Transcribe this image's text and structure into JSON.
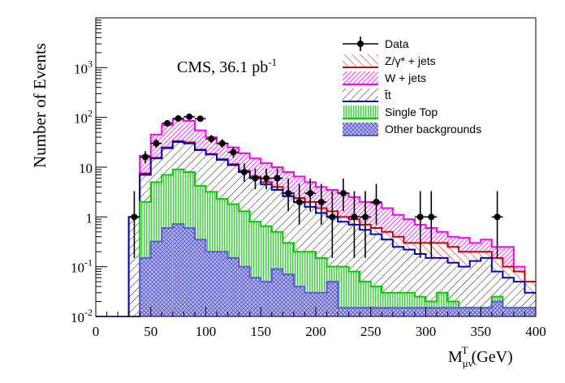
{
  "chart_data": {
    "type": "bar",
    "stacked": true,
    "y_scale": "log",
    "xlim": [
      0,
      400
    ],
    "ylim": [
      0.01,
      10000
    ],
    "bin_width": 10,
    "x_ticks": [
      "0",
      "50",
      "100",
      "150",
      "200",
      "250",
      "300",
      "350",
      "400"
    ],
    "y_ticks": [
      {
        "value": 0.01,
        "base": "10",
        "exp": "-2"
      },
      {
        "value": 0.1,
        "base": "10",
        "exp": "-1"
      },
      {
        "value": 1,
        "base": "1",
        "exp": ""
      },
      {
        "value": 10,
        "base": "10",
        "exp": ""
      },
      {
        "value": 100,
        "base": "10",
        "exp": "2"
      },
      {
        "value": 1000,
        "base": "10",
        "exp": "3"
      }
    ],
    "ylabel": "Number of Events",
    "xlabel": {
      "main": "M",
      "sub": "μν",
      "sup": "T",
      "unit": "(GeV)"
    },
    "annotation": {
      "text": "CMS, 36.1 pb",
      "sup": "-1"
    },
    "legend_position": "top-right",
    "stack_order": [
      "Other backgrounds",
      "Single Top",
      "t̄t",
      "Z/γ* + jets",
      "W + jets"
    ],
    "stack_tops": [
      {
        "name": "Other backgrounds",
        "color": "#5a5ad8",
        "hatch": "cross",
        "values": [
          0.01,
          0.01,
          0.01,
          0.01,
          0.15,
          0.32,
          0.6,
          0.72,
          0.6,
          0.35,
          0.2,
          0.2,
          0.15,
          0.1,
          0.06,
          0.05,
          0.09,
          0.07,
          0.04,
          0.03,
          0.03,
          0.05,
          0.015,
          0.015,
          0.015,
          0.015,
          0.015,
          0.015,
          0.015,
          0.015,
          0.015,
          0.015,
          0.015,
          0.015,
          0.015,
          0.015,
          0.02,
          0.015,
          0.015,
          0.015
        ]
      },
      {
        "name": "Single Top",
        "color": "#00cc00",
        "hatch": "vertical",
        "values": [
          0.01,
          0.01,
          0.01,
          0.01,
          2,
          5,
          7,
          9,
          8,
          4.2,
          3.2,
          2.3,
          1.8,
          1.3,
          0.8,
          0.65,
          0.5,
          0.3,
          0.2,
          0.2,
          0.15,
          0.1,
          0.1,
          0.08,
          0.05,
          0.04,
          0.03,
          0.03,
          0.03,
          0.025,
          0.02,
          0.03,
          0.02,
          0.015,
          0.015,
          0.015,
          0.025,
          0.015,
          0.015,
          0.015
        ]
      },
      {
        "name": "t̄t",
        "color": "#0000cc",
        "hatch": "diagonal-back",
        "values": [
          0.01,
          0.01,
          0.01,
          1,
          7,
          15,
          24,
          32,
          30,
          22,
          18,
          14,
          11,
          8,
          6,
          4.5,
          3.5,
          2.6,
          2,
          1.6,
          1.2,
          1,
          0.8,
          0.7,
          0.55,
          0.45,
          0.35,
          0.25,
          0.22,
          0.18,
          0.15,
          0.15,
          0.12,
          0.1,
          0.13,
          0.15,
          0.08,
          0.06,
          0.05,
          0.03
        ]
      },
      {
        "name": "Z/γ* + jets",
        "color": "#cc0000",
        "hatch": "diagonal",
        "values": [
          0.01,
          0.01,
          0.01,
          0.25,
          7.5,
          15.5,
          25,
          33.5,
          31.5,
          22.5,
          18.5,
          14.5,
          11.5,
          8.5,
          6.5,
          5,
          4,
          3,
          2.4,
          2,
          1.5,
          1.3,
          1,
          0.9,
          0.7,
          0.6,
          0.5,
          0.4,
          0.3,
          0.3,
          0.3,
          0.3,
          0.25,
          0.2,
          0.2,
          0.2,
          0.15,
          0.1,
          0.08,
          0.05
        ]
      },
      {
        "name": "W + jets",
        "color": "#ff00ff",
        "hatch": "diagonal-fine",
        "values": [
          0.01,
          0.01,
          0.01,
          0.9,
          17,
          45,
          70,
          92,
          85,
          55,
          40,
          30,
          25,
          19,
          15,
          12,
          10,
          8,
          6.5,
          5,
          4,
          3.5,
          3,
          2.5,
          2,
          1.9,
          1.5,
          1.1,
          0.9,
          0.7,
          0.6,
          0.5,
          0.4,
          0.38,
          0.3,
          0.35,
          0.25,
          0.25,
          0.1,
          0.04
        ]
      }
    ],
    "data_points": {
      "name": "Data",
      "x": [
        35,
        45,
        55,
        65,
        75,
        85,
        95,
        105,
        115,
        125,
        135,
        145,
        155,
        165,
        175,
        185,
        195,
        205,
        215,
        225,
        235,
        245,
        255,
        295,
        305,
        365
      ],
      "y": [
        1,
        16,
        30,
        76,
        95,
        103,
        94,
        37,
        30,
        20,
        8,
        6,
        6,
        6,
        3,
        2,
        3,
        2,
        1,
        3,
        1,
        1,
        2,
        1,
        1,
        1
      ],
      "err_lo": [
        0.85,
        4,
        5.5,
        8.7,
        9.7,
        10,
        9.7,
        6,
        5.5,
        4.5,
        2.9,
        2.4,
        2.4,
        2.4,
        1.7,
        1.3,
        1.7,
        1.3,
        0.85,
        1.7,
        0.85,
        0.85,
        1.3,
        0.85,
        0.85,
        0.85
      ],
      "err_hi": [
        2.3,
        5,
        6.5,
        9.7,
        10.7,
        11,
        10.7,
        7,
        6.5,
        5.5,
        3.9,
        3.4,
        3.4,
        3.4,
        2.9,
        2.6,
        2.9,
        2.6,
        2.3,
        2.9,
        2.3,
        2.3,
        2.6,
        2.3,
        2.3,
        2.3
      ]
    },
    "legend": [
      {
        "label": "Data",
        "kind": "marker",
        "color": "#000000"
      },
      {
        "label": "Z/γ* + jets",
        "kind": "box",
        "color": "#cc0000",
        "hatch": "diagonal"
      },
      {
        "label": "W + jets",
        "kind": "box",
        "color": "#ff00ff",
        "hatch": "diagonal-fine"
      },
      {
        "label": "t̄t",
        "kind": "box",
        "color": "#0000cc",
        "hatch": "diagonal-back"
      },
      {
        "label": "Single Top",
        "kind": "box",
        "color": "#00cc00",
        "hatch": "vertical"
      },
      {
        "label": "Other backgrounds",
        "kind": "box",
        "color": "#5a5ad8",
        "hatch": "cross"
      }
    ]
  }
}
